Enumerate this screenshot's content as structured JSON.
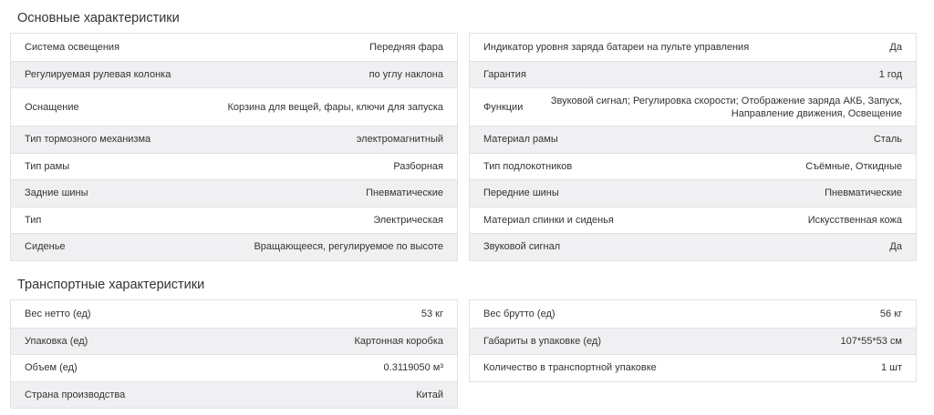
{
  "sections": [
    {
      "title": "Основные характеристики",
      "left": [
        {
          "label": "Система освещения",
          "value": "Передняя фара"
        },
        {
          "label": "Регулируемая рулевая колонка",
          "value": "по углу наклона"
        },
        {
          "label": "Оснащение",
          "value": "Корзина для вещей, фары, ключи для запуска"
        },
        {
          "label": "Тип тормозного механизма",
          "value": "электромагнитный"
        },
        {
          "label": "Тип рамы",
          "value": "Разборная"
        },
        {
          "label": "Задние шины",
          "value": "Пневматические"
        },
        {
          "label": "Тип",
          "value": "Электрическая"
        },
        {
          "label": "Сиденье",
          "value": "Вращающееся, регулируемое по высоте"
        }
      ],
      "right": [
        {
          "label": "Индикатор уровня заряда батареи на пульте управления",
          "value": "Да"
        },
        {
          "label": "Гарантия",
          "value": "1 год"
        },
        {
          "label": "Функции",
          "value": "Звуковой сигнал; Регулировка скорости; Отображение заряда АКБ, Запуск,",
          "value2": "Направление движения, Освещение"
        },
        {
          "label": "Материал рамы",
          "value": "Сталь"
        },
        {
          "label": "Тип подлокотников",
          "value": "Съёмные, Откидные"
        },
        {
          "label": "Передние шины",
          "value": "Пневматические"
        },
        {
          "label": "Материал спинки и сиденья",
          "value": "Искусственная кожа"
        },
        {
          "label": "Звуковой сигнал",
          "value": "Да"
        }
      ]
    },
    {
      "title": "Транспортные характеристики",
      "left": [
        {
          "label": "Вес нетто (ед)",
          "value": "53 кг"
        },
        {
          "label": "Упаковка (ед)",
          "value": "Картонная коробка"
        },
        {
          "label": "Объем (ед)",
          "value": "0.3119050 м³"
        },
        {
          "label": "Страна производства",
          "value": "Китай"
        }
      ],
      "right": [
        {
          "label": "Вес брутто (ед)",
          "value": "56 кг"
        },
        {
          "label": "Габариты в упаковке (ед)",
          "value": "107*55*53 см"
        },
        {
          "label": "Количество в транспортной упаковке",
          "value": "1 шт"
        }
      ]
    }
  ]
}
